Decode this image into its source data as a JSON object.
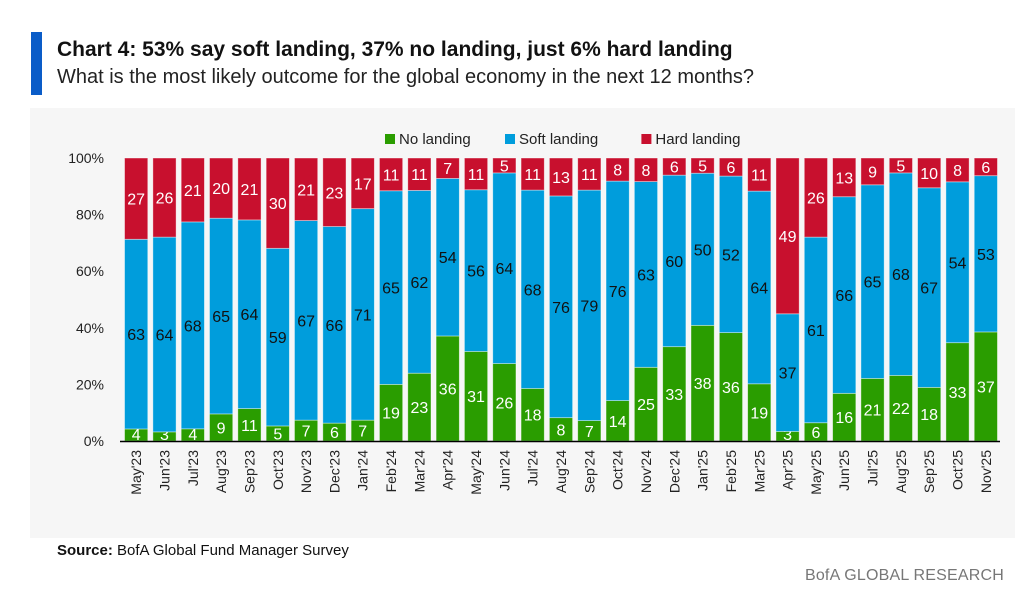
{
  "header": {
    "title": "Chart 4: 53% say soft landing, 37% no landing, just 6% hard landing",
    "subtitle": "What is the most likely outcome for the global economy in the next 12 months?"
  },
  "footer": {
    "source_label": "Source:",
    "source_text": "BofA Global Fund Manager Survey",
    "brand": "BofA GLOBAL RESEARCH"
  },
  "chart_data": {
    "type": "bar",
    "stacked": true,
    "title": "Chart 4: 53% say soft landing, 37% no landing, just 6% hard landing",
    "subtitle": "What is the most likely outcome for the global economy in the next 12 months?",
    "ylim": [
      0,
      100
    ],
    "yticks": [
      "0%",
      "20%",
      "40%",
      "60%",
      "80%",
      "100%"
    ],
    "legend_position": "top",
    "categories": [
      "May'23",
      "Jun'23",
      "Jul'23",
      "Aug'23",
      "Sep'23",
      "Oct'23",
      "Nov'23",
      "Dec'23",
      "Jan'24",
      "Feb'24",
      "Mar'24",
      "Apr'24",
      "May'24",
      "Jun'24",
      "Jul'24",
      "Aug'24",
      "Sep'24",
      "Oct'24",
      "Nov'24",
      "Dec'24",
      "Jan'25",
      "Feb'25",
      "Mar'25",
      "Apr'25",
      "May'25",
      "Jun'25",
      "Jul'25",
      "Aug'25",
      "Sep'25",
      "Oct'25",
      "Nov'25"
    ],
    "series": [
      {
        "name": "No landing",
        "color": "#2a9d00",
        "values": [
          4,
          3,
          4,
          9,
          11,
          5,
          7,
          6,
          7,
          19,
          23,
          36,
          31,
          26,
          18,
          8,
          7,
          14,
          25,
          33,
          38,
          36,
          19,
          3,
          6,
          16,
          21,
          22,
          18,
          33,
          37
        ]
      },
      {
        "name": "Soft landing",
        "color": "#009ddc",
        "values": [
          63,
          64,
          68,
          65,
          64,
          59,
          67,
          66,
          71,
          65,
          62,
          54,
          56,
          64,
          68,
          76,
          79,
          76,
          63,
          60,
          50,
          52,
          64,
          37,
          61,
          66,
          65,
          68,
          67,
          54,
          53
        ]
      },
      {
        "name": "Hard landing",
        "color": "#c8102e",
        "values": [
          27,
          26,
          21,
          20,
          21,
          30,
          21,
          23,
          17,
          11,
          11,
          7,
          11,
          5,
          11,
          13,
          11,
          8,
          8,
          6,
          5,
          6,
          11,
          49,
          26,
          13,
          9,
          5,
          10,
          8,
          6
        ]
      }
    ]
  }
}
